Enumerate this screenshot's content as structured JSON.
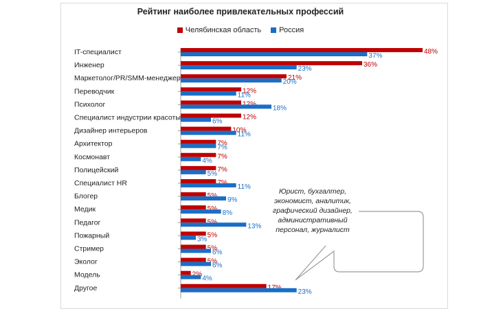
{
  "chart_data": {
    "type": "bar",
    "orientation": "horizontal",
    "title": "Рейтинг наиболее привлекательных профессий",
    "categories": [
      "IT-специалист",
      "Инженер",
      "Маркетолог/PR/SMM-менеджер",
      "Переводчик",
      "Психолог",
      "Специалист индустрии красоты",
      "Дизайнер интерьеров",
      "Архитектор",
      "Космонавт",
      "Полицейский",
      "Специалист HR",
      "Блогер",
      "Медик",
      "Педагог",
      "Пожарный",
      "Стример",
      "Эколог",
      "Модель",
      "Другое"
    ],
    "series": [
      {
        "name": "Челябинская область",
        "color": "#c00000",
        "values": [
          48,
          36,
          21,
          12,
          12,
          12,
          10,
          7,
          7,
          7,
          7,
          5,
          5,
          5,
          5,
          5,
          5,
          2,
          17
        ],
        "labels": [
          "48%",
          "36%",
          "21%",
          "12%",
          "12%",
          "12%",
          "10%",
          "7%",
          "7%",
          "7%",
          "7%",
          "5%",
          "5%",
          "5%",
          "5%",
          "5%",
          "5%",
          "2%",
          "17%"
        ]
      },
      {
        "name": "Россия",
        "color": "#1a6ec6",
        "values": [
          37,
          23,
          20,
          11,
          18,
          6,
          11,
          7,
          4,
          5,
          11,
          9,
          8,
          13,
          3,
          6,
          6,
          4,
          23
        ],
        "labels": [
          "37%",
          "23%",
          "20%",
          "11%",
          "18%",
          "6%",
          "11%",
          "7%",
          "4%",
          "5%",
          "11%",
          "9%",
          "8%",
          "13%",
          "3%",
          "6%",
          "6%",
          "4%",
          "23%"
        ]
      }
    ],
    "xlim": [
      0,
      48
    ],
    "grid": false,
    "legend_position": "top",
    "annotation": "Юрист, бухгалтер, экономист, аналитик, графический дизайнер, административный персонал, журналист"
  }
}
